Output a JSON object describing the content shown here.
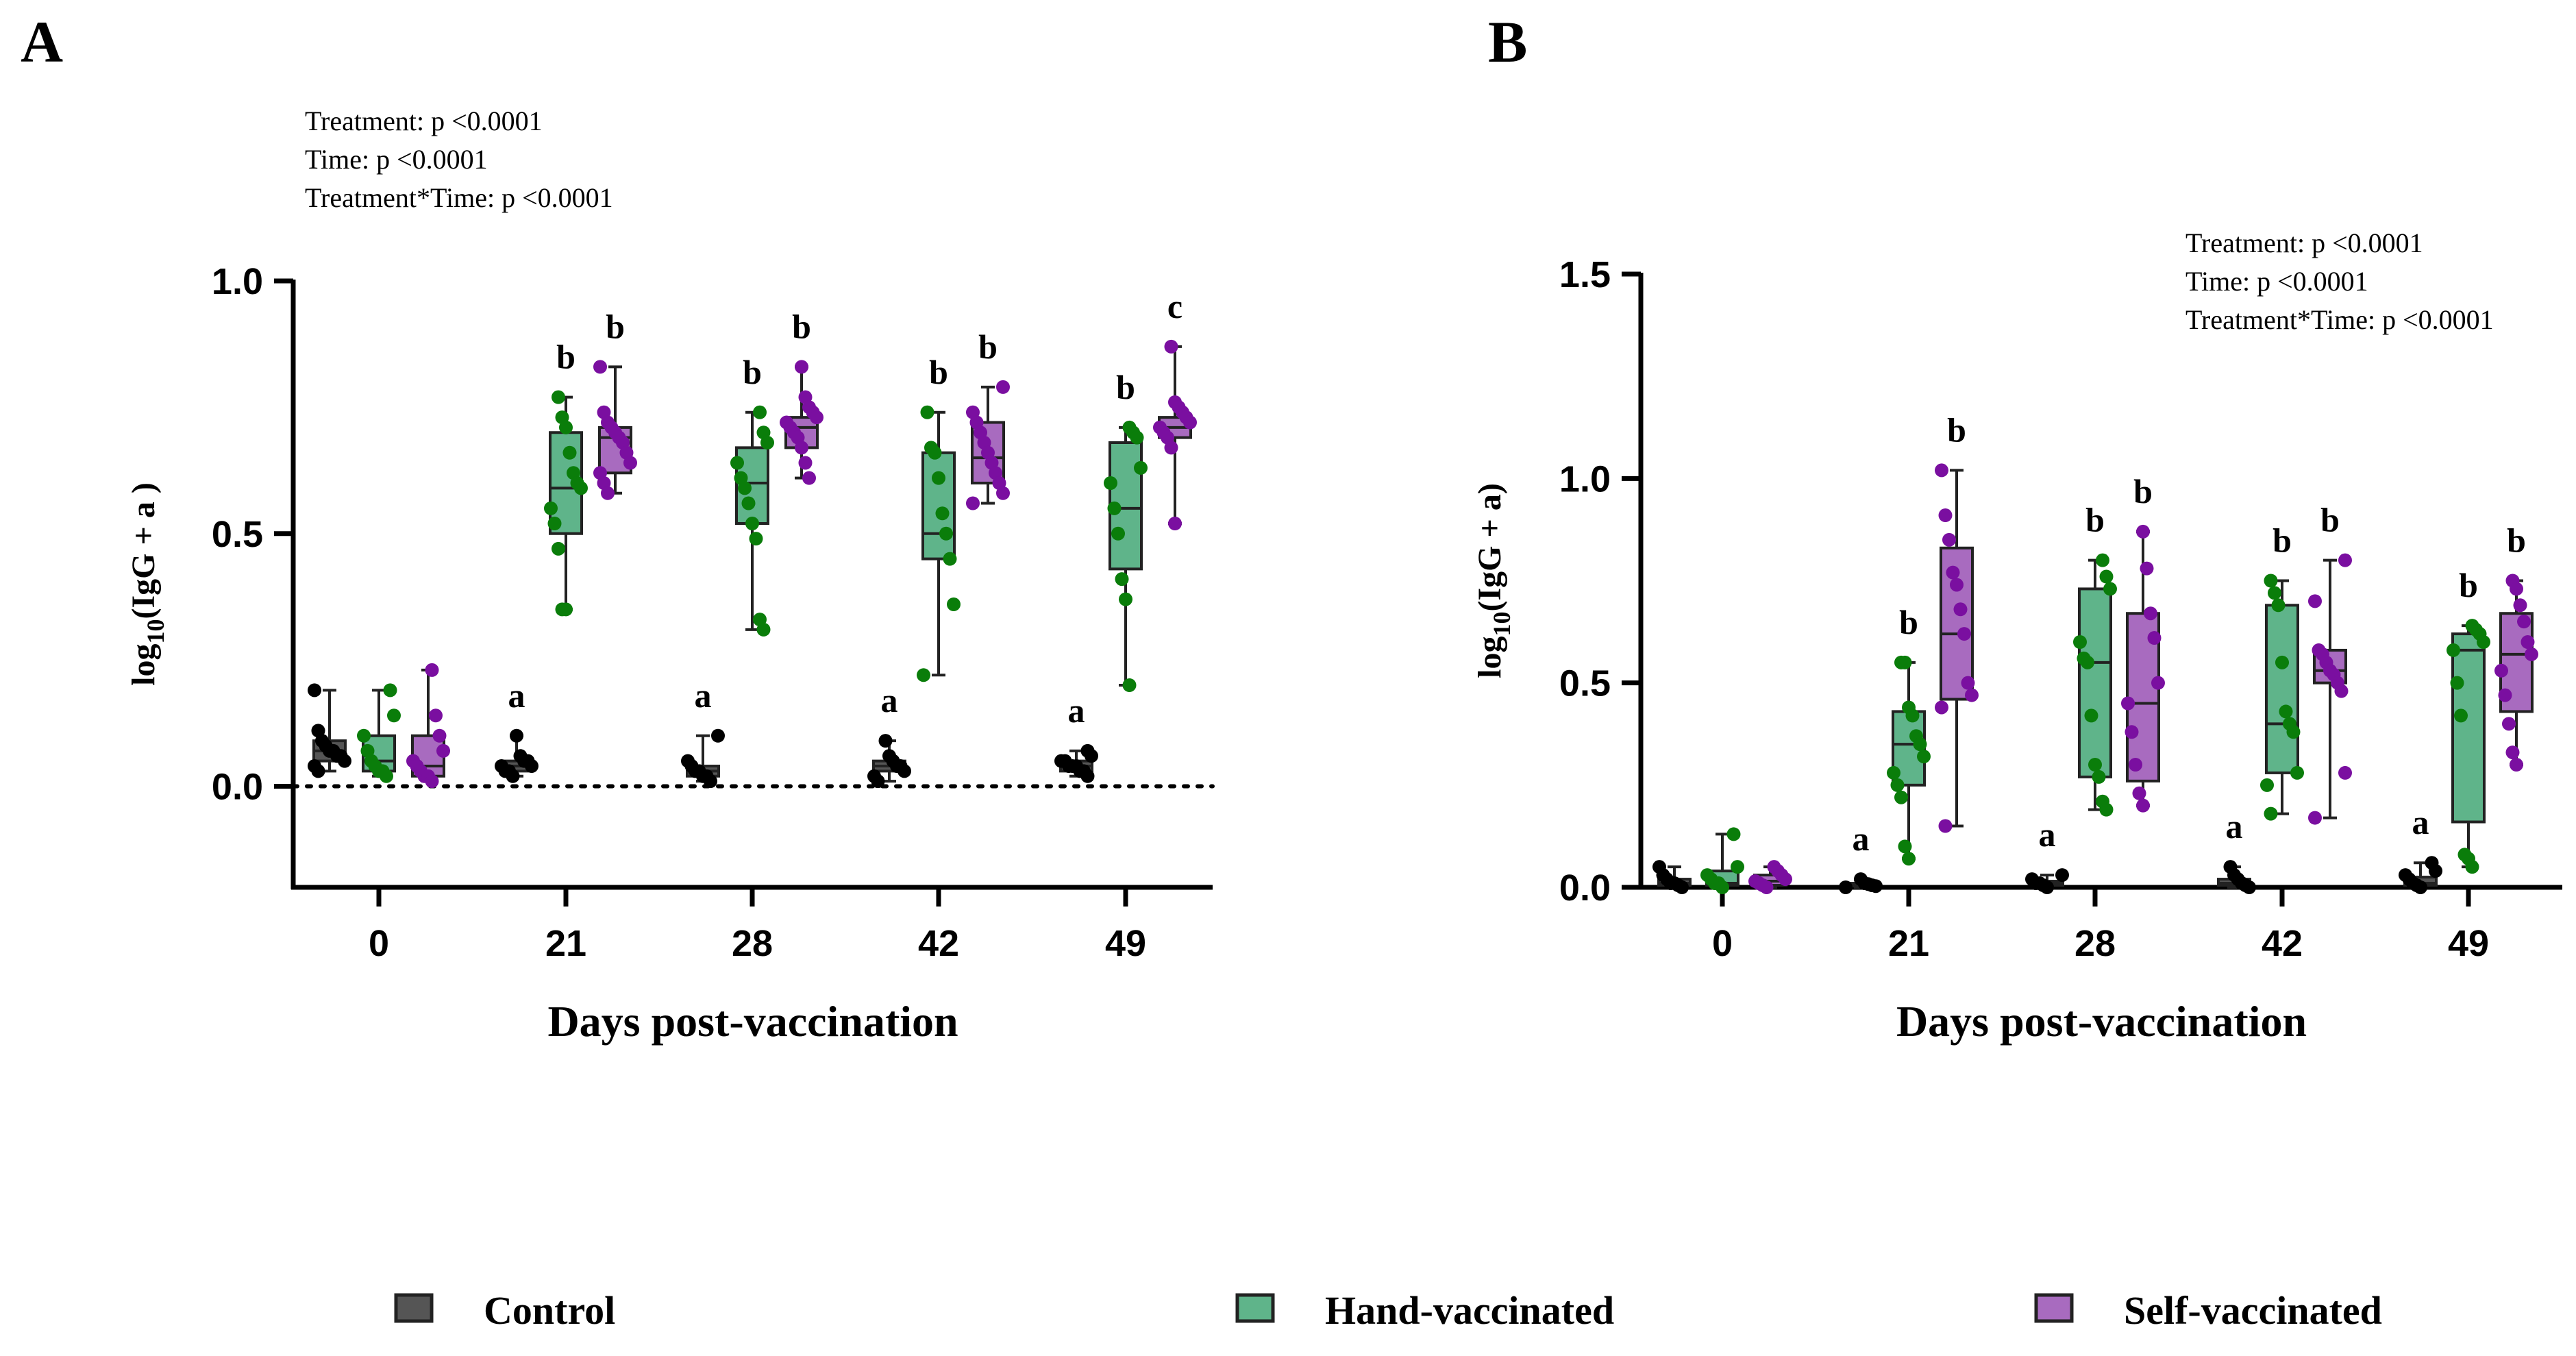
{
  "figure": {
    "legend": [
      {
        "label": "Control",
        "fill": "#555555",
        "point": "#000000"
      },
      {
        "label": "Hand-vaccinated",
        "fill": "#5fb48a",
        "point": "#0a7d0a"
      },
      {
        "label": "Self-vaccinated",
        "fill": "#a86bbf",
        "point": "#7a0fa0"
      }
    ]
  },
  "chart_data": [
    {
      "panel": "A",
      "type": "box",
      "title": "",
      "xlabel": "Days post-vaccination",
      "ylabel_main": "log",
      "ylabel_sub": "10",
      "ylabel_rest": "(IgG + a )",
      "ylim": [
        -0.2,
        1.0
      ],
      "yticks": [
        0.0,
        0.5,
        1.0
      ],
      "ytick_labels": [
        "0.0",
        "0.5",
        "1.0"
      ],
      "zero_dotted_line": true,
      "categories": [
        "0",
        "21",
        "28",
        "42",
        "49"
      ],
      "stats": [
        "Treatment: p <0.0001",
        "Time: p <0.0001",
        "Treatment*Time: p <0.0001"
      ],
      "stats_position": "top-left",
      "series": [
        {
          "name": "Control",
          "boxes": [
            {
              "min": 0.03,
              "q1": 0.05,
              "median": 0.07,
              "q3": 0.09,
              "max": 0.19,
              "points": [
                0.19,
                0.11,
                0.09,
                0.08,
                0.07,
                0.07,
                0.06,
                0.06,
                0.05,
                0.04,
                0.03
              ]
            },
            {
              "min": 0.02,
              "q1": 0.03,
              "median": 0.04,
              "q3": 0.05,
              "max": 0.1,
              "points": [
                0.1,
                0.06,
                0.05,
                0.05,
                0.04,
                0.04,
                0.03,
                0.03,
                0.02
              ]
            },
            {
              "min": 0.01,
              "q1": 0.02,
              "median": 0.03,
              "q3": 0.04,
              "max": 0.1,
              "points": [
                0.1,
                0.05,
                0.04,
                0.03,
                0.03,
                0.02,
                0.02,
                0.01
              ]
            },
            {
              "min": 0.01,
              "q1": 0.03,
              "median": 0.04,
              "q3": 0.05,
              "max": 0.09,
              "points": [
                0.09,
                0.06,
                0.05,
                0.04,
                0.04,
                0.03,
                0.02,
                0.01
              ]
            },
            {
              "min": 0.02,
              "q1": 0.03,
              "median": 0.04,
              "q3": 0.05,
              "max": 0.07,
              "points": [
                0.07,
                0.06,
                0.05,
                0.05,
                0.04,
                0.04,
                0.04,
                0.03,
                0.03,
                0.02
              ]
            }
          ],
          "sig": [
            "",
            "a",
            "a",
            "a",
            "a"
          ]
        },
        {
          "name": "Hand-vaccinated",
          "boxes": [
            {
              "min": 0.02,
              "q1": 0.03,
              "median": 0.05,
              "q3": 0.1,
              "max": 0.19,
              "points": [
                0.19,
                0.14,
                0.1,
                0.07,
                0.05,
                0.04,
                0.03,
                0.03,
                0.02
              ]
            },
            {
              "min": 0.35,
              "q1": 0.5,
              "median": 0.59,
              "q3": 0.7,
              "max": 0.77,
              "points": [
                0.77,
                0.73,
                0.71,
                0.66,
                0.62,
                0.6,
                0.59,
                0.55,
                0.52,
                0.47,
                0.35,
                0.35
              ]
            },
            {
              "min": 0.31,
              "q1": 0.52,
              "median": 0.6,
              "q3": 0.67,
              "max": 0.74,
              "points": [
                0.74,
                0.7,
                0.68,
                0.64,
                0.61,
                0.59,
                0.56,
                0.52,
                0.49,
                0.33,
                0.31
              ]
            },
            {
              "min": 0.22,
              "q1": 0.45,
              "median": 0.5,
              "q3": 0.66,
              "max": 0.74,
              "points": [
                0.74,
                0.67,
                0.66,
                0.61,
                0.54,
                0.5,
                0.45,
                0.36,
                0.22
              ]
            },
            {
              "min": 0.2,
              "q1": 0.43,
              "median": 0.55,
              "q3": 0.68,
              "max": 0.71,
              "points": [
                0.71,
                0.7,
                0.69,
                0.63,
                0.6,
                0.55,
                0.5,
                0.41,
                0.37,
                0.2
              ]
            }
          ],
          "sig": [
            "",
            "b",
            "b",
            "b",
            "b"
          ]
        },
        {
          "name": "Self-vaccinated",
          "boxes": [
            {
              "min": 0.01,
              "q1": 0.02,
              "median": 0.04,
              "q3": 0.1,
              "max": 0.23,
              "points": [
                0.23,
                0.14,
                0.1,
                0.07,
                0.05,
                0.04,
                0.03,
                0.02,
                0.02,
                0.01
              ]
            },
            {
              "min": 0.58,
              "q1": 0.62,
              "median": 0.69,
              "q3": 0.71,
              "max": 0.83,
              "points": [
                0.83,
                0.74,
                0.72,
                0.71,
                0.7,
                0.69,
                0.68,
                0.66,
                0.64,
                0.62,
                0.6,
                0.58
              ]
            },
            {
              "min": 0.61,
              "q1": 0.67,
              "median": 0.71,
              "q3": 0.73,
              "max": 0.83,
              "points": [
                0.83,
                0.77,
                0.75,
                0.74,
                0.73,
                0.72,
                0.71,
                0.7,
                0.69,
                0.67,
                0.64,
                0.61
              ]
            },
            {
              "min": 0.56,
              "q1": 0.6,
              "median": 0.65,
              "q3": 0.72,
              "max": 0.79,
              "points": [
                0.79,
                0.74,
                0.72,
                0.7,
                0.68,
                0.66,
                0.64,
                0.62,
                0.6,
                0.58,
                0.56
              ]
            },
            {
              "min": 0.52,
              "q1": 0.69,
              "median": 0.71,
              "q3": 0.73,
              "max": 0.87,
              "points": [
                0.87,
                0.76,
                0.75,
                0.74,
                0.73,
                0.72,
                0.71,
                0.7,
                0.69,
                0.67,
                0.52
              ]
            }
          ],
          "sig": [
            "",
            "b",
            "b",
            "b",
            "c"
          ]
        }
      ]
    },
    {
      "panel": "B",
      "type": "box",
      "title": "",
      "xlabel": "Days post-vaccination",
      "ylabel_main": "log",
      "ylabel_sub": "10",
      "ylabel_rest": "(IgG + a)",
      "ylim": [
        0.0,
        1.5
      ],
      "yticks": [
        0.0,
        0.5,
        1.0,
        1.5
      ],
      "ytick_labels": [
        "0.0",
        "0.5",
        "1.0",
        "1.5"
      ],
      "zero_dotted_line": false,
      "categories": [
        "0",
        "21",
        "28",
        "42",
        "49"
      ],
      "stats": [
        "Treatment: p <0.0001",
        "Time: p <0.0001",
        "Treatment*Time: p <0.0001"
      ],
      "stats_position": "top-right",
      "series": [
        {
          "name": "Control",
          "boxes": [
            {
              "min": 0.0,
              "q1": 0.005,
              "median": 0.01,
              "q3": 0.02,
              "max": 0.05,
              "points": [
                0.05,
                0.03,
                0.02,
                0.01,
                0.01,
                0.005,
                0.0
              ]
            },
            {
              "min": 0.0,
              "q1": 0.003,
              "median": 0.007,
              "q3": 0.01,
              "max": 0.02,
              "points": [
                0.02,
                0.01,
                0.008,
                0.005,
                0.003,
                0.0
              ]
            },
            {
              "min": 0.0,
              "q1": 0.005,
              "median": 0.01,
              "q3": 0.015,
              "max": 0.03,
              "points": [
                0.03,
                0.02,
                0.01,
                0.01,
                0.005,
                0.0
              ]
            },
            {
              "min": 0.0,
              "q1": 0.005,
              "median": 0.01,
              "q3": 0.02,
              "max": 0.05,
              "points": [
                0.05,
                0.03,
                0.02,
                0.01,
                0.005,
                0.0
              ]
            },
            {
              "min": 0.0,
              "q1": 0.005,
              "median": 0.01,
              "q3": 0.025,
              "max": 0.06,
              "points": [
                0.06,
                0.04,
                0.03,
                0.02,
                0.01,
                0.005,
                0.0
              ]
            }
          ],
          "sig": [
            "",
            "a",
            "a",
            "a",
            "a"
          ]
        },
        {
          "name": "Hand-vaccinated",
          "boxes": [
            {
              "min": 0.0,
              "q1": 0.005,
              "median": 0.01,
              "q3": 0.04,
              "max": 0.13,
              "points": [
                0.13,
                0.05,
                0.03,
                0.02,
                0.01,
                0.01,
                0.0
              ]
            },
            {
              "min": 0.07,
              "q1": 0.25,
              "median": 0.35,
              "q3": 0.43,
              "max": 0.55,
              "points": [
                0.55,
                0.55,
                0.44,
                0.42,
                0.37,
                0.35,
                0.32,
                0.28,
                0.25,
                0.22,
                0.1,
                0.07
              ]
            },
            {
              "min": 0.19,
              "q1": 0.27,
              "median": 0.55,
              "q3": 0.73,
              "max": 0.8,
              "points": [
                0.8,
                0.76,
                0.73,
                0.6,
                0.56,
                0.55,
                0.42,
                0.3,
                0.27,
                0.21,
                0.19
              ]
            },
            {
              "min": 0.18,
              "q1": 0.28,
              "median": 0.4,
              "q3": 0.69,
              "max": 0.75,
              "points": [
                0.75,
                0.72,
                0.69,
                0.55,
                0.43,
                0.4,
                0.38,
                0.28,
                0.25,
                0.18
              ]
            },
            {
              "min": 0.05,
              "q1": 0.16,
              "median": 0.58,
              "q3": 0.62,
              "max": 0.64,
              "points": [
                0.64,
                0.63,
                0.62,
                0.6,
                0.58,
                0.5,
                0.42,
                0.08,
                0.07,
                0.05
              ]
            }
          ],
          "sig": [
            "",
            "b",
            "b",
            "b",
            "b"
          ]
        },
        {
          "name": "Self-vaccinated",
          "boxes": [
            {
              "min": 0.0,
              "q1": 0.005,
              "median": 0.015,
              "q3": 0.03,
              "max": 0.05,
              "points": [
                0.05,
                0.04,
                0.03,
                0.02,
                0.015,
                0.01,
                0.005,
                0.0
              ]
            },
            {
              "min": 0.15,
              "q1": 0.46,
              "median": 0.62,
              "q3": 0.83,
              "max": 1.02,
              "points": [
                1.02,
                0.91,
                0.85,
                0.77,
                0.74,
                0.68,
                0.62,
                0.5,
                0.47,
                0.44,
                0.15
              ]
            },
            {
              "min": 0.2,
              "q1": 0.26,
              "median": 0.45,
              "q3": 0.67,
              "max": 0.87,
              "points": [
                0.87,
                0.78,
                0.67,
                0.61,
                0.5,
                0.45,
                0.38,
                0.3,
                0.23,
                0.2
              ]
            },
            {
              "min": 0.17,
              "q1": 0.5,
              "median": 0.53,
              "q3": 0.58,
              "max": 0.8,
              "points": [
                0.8,
                0.7,
                0.58,
                0.57,
                0.55,
                0.53,
                0.52,
                0.5,
                0.48,
                0.28,
                0.17
              ]
            },
            {
              "min": 0.3,
              "q1": 0.43,
              "median": 0.57,
              "q3": 0.67,
              "max": 0.75,
              "points": [
                0.75,
                0.73,
                0.69,
                0.65,
                0.6,
                0.57,
                0.53,
                0.47,
                0.4,
                0.33,
                0.3
              ]
            }
          ],
          "sig": [
            "",
            "b",
            "b",
            "b",
            "b"
          ]
        }
      ]
    }
  ]
}
